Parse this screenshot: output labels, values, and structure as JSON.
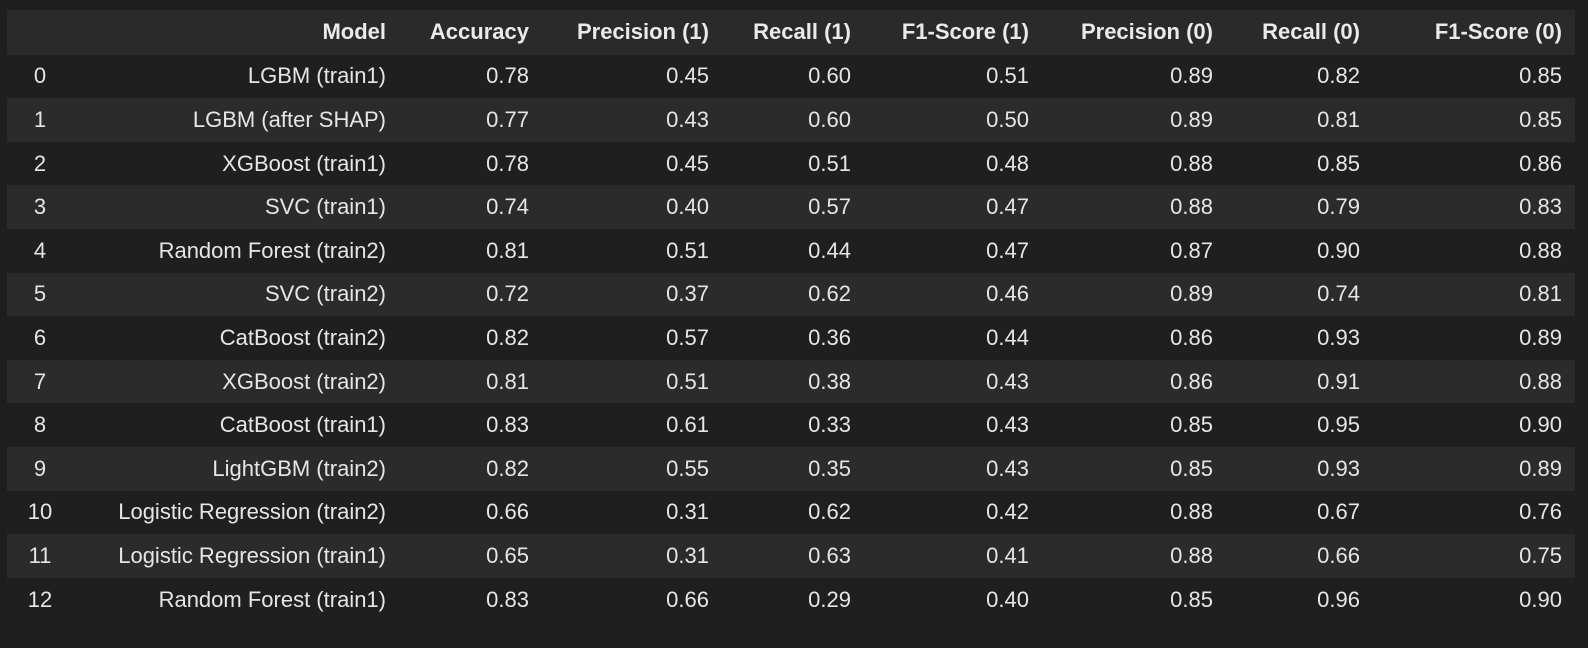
{
  "table": {
    "columns": [
      "",
      "Model",
      "Accuracy",
      "Precision (1)",
      "Recall (1)",
      "F1-Score (1)",
      "Precision (0)",
      "Recall (0)",
      "F1-Score (0)"
    ],
    "rows": [
      [
        "0",
        "LGBM (train1)",
        "0.78",
        "0.45",
        "0.60",
        "0.51",
        "0.89",
        "0.82",
        "0.85"
      ],
      [
        "1",
        "LGBM (after SHAP)",
        "0.77",
        "0.43",
        "0.60",
        "0.50",
        "0.89",
        "0.81",
        "0.85"
      ],
      [
        "2",
        "XGBoost (train1)",
        "0.78",
        "0.45",
        "0.51",
        "0.48",
        "0.88",
        "0.85",
        "0.86"
      ],
      [
        "3",
        "SVC (train1)",
        "0.74",
        "0.40",
        "0.57",
        "0.47",
        "0.88",
        "0.79",
        "0.83"
      ],
      [
        "4",
        "Random Forest (train2)",
        "0.81",
        "0.51",
        "0.44",
        "0.47",
        "0.87",
        "0.90",
        "0.88"
      ],
      [
        "5",
        "SVC (train2)",
        "0.72",
        "0.37",
        "0.62",
        "0.46",
        "0.89",
        "0.74",
        "0.81"
      ],
      [
        "6",
        "CatBoost (train2)",
        "0.82",
        "0.57",
        "0.36",
        "0.44",
        "0.86",
        "0.93",
        "0.89"
      ],
      [
        "7",
        "XGBoost (train2)",
        "0.81",
        "0.51",
        "0.38",
        "0.43",
        "0.86",
        "0.91",
        "0.88"
      ],
      [
        "8",
        "CatBoost (train1)",
        "0.83",
        "0.61",
        "0.33",
        "0.43",
        "0.85",
        "0.95",
        "0.90"
      ],
      [
        "9",
        "LightGBM (train2)",
        "0.82",
        "0.55",
        "0.35",
        "0.43",
        "0.85",
        "0.93",
        "0.89"
      ],
      [
        "10",
        "Logistic Regression (train2)",
        "0.66",
        "0.31",
        "0.62",
        "0.42",
        "0.88",
        "0.67",
        "0.76"
      ],
      [
        "11",
        "Logistic Regression (train1)",
        "0.65",
        "0.31",
        "0.63",
        "0.41",
        "0.88",
        "0.66",
        "0.75"
      ],
      [
        "12",
        "Random Forest (train1)",
        "0.83",
        "0.66",
        "0.29",
        "0.40",
        "0.85",
        "0.96",
        "0.90"
      ]
    ]
  }
}
